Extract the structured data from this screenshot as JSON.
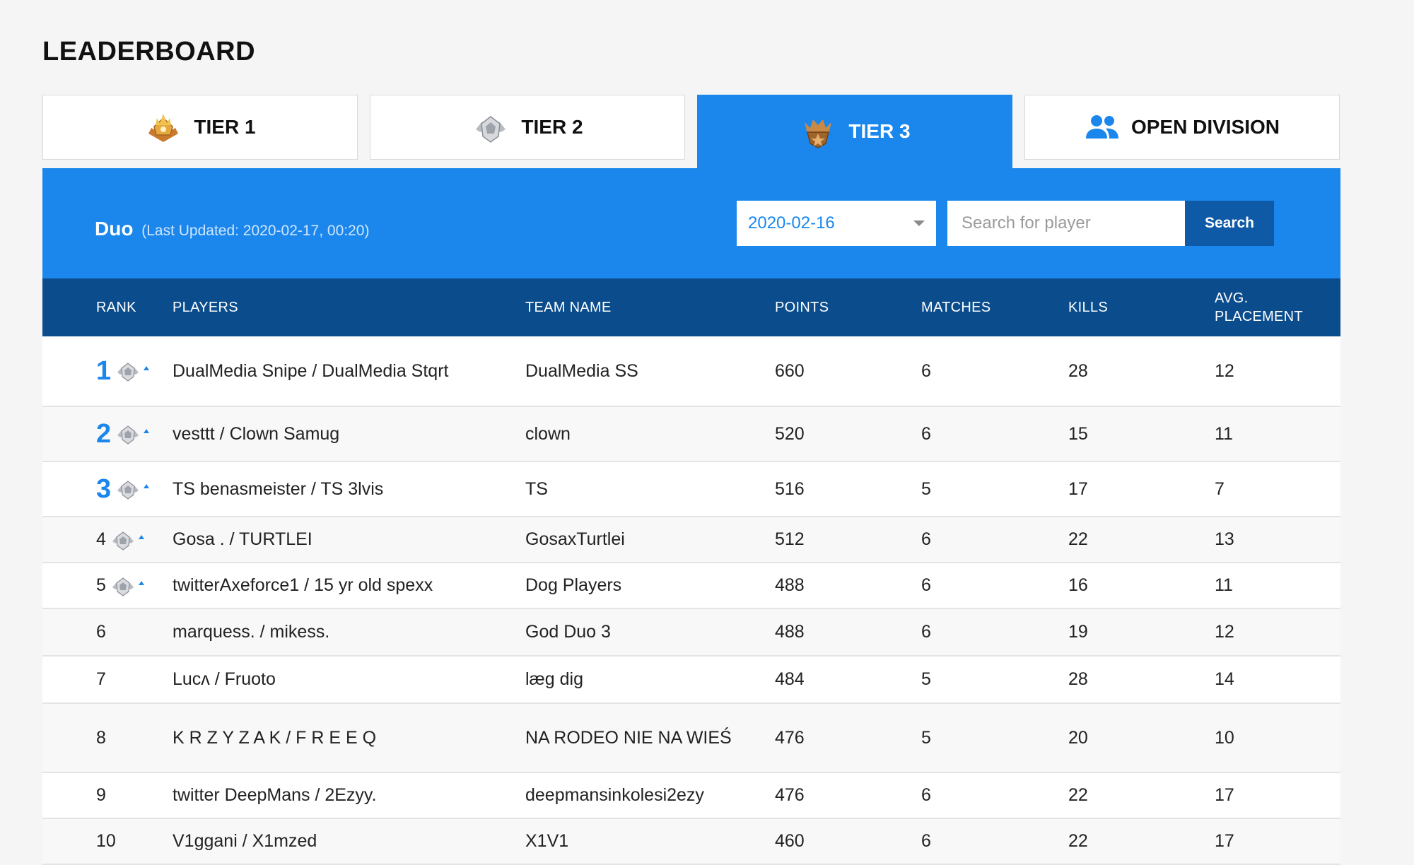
{
  "page": {
    "title": "LEADERBOARD"
  },
  "tabs": [
    {
      "label": "TIER 1",
      "icon": "gold-crown-badge-icon"
    },
    {
      "label": "TIER 2",
      "icon": "silver-badge-icon"
    },
    {
      "label": "TIER 3",
      "icon": "bronze-badge-icon",
      "active": true
    },
    {
      "label": "OPEN DIVISION",
      "icon": "people-icon"
    }
  ],
  "banner": {
    "mode": "Duo",
    "updated": "(Last Updated: 2020-02-17, 00:20)",
    "date_value": "2020-02-16",
    "search_placeholder": "Search for player",
    "search_label": "Search"
  },
  "table": {
    "headers": {
      "rank": "RANK",
      "players": "PLAYERS",
      "team": "TEAM NAME",
      "points": "POINTS",
      "matches": "MATCHES",
      "kills": "KILLS",
      "avg_line1": "AVG.",
      "avg_line2": "PLACEMENT"
    },
    "rows": [
      {
        "rank": "1",
        "players": "DualMedia Snipe / DualMedia Stqrt",
        "team": "DualMedia SS",
        "points": "660",
        "matches": "6",
        "kills": "28",
        "avg": "12"
      },
      {
        "rank": "2",
        "players": "vesttt / Clown Samug",
        "team": "clown",
        "points": "520",
        "matches": "6",
        "kills": "15",
        "avg": "11"
      },
      {
        "rank": "3",
        "players": "TS benasmeister / TS 3lvis",
        "team": "TS",
        "points": "516",
        "matches": "5",
        "kills": "17",
        "avg": "7"
      },
      {
        "rank": "4",
        "players": "Gosa . / TURTLEI",
        "team": "GosaxTurtlei",
        "points": "512",
        "matches": "6",
        "kills": "22",
        "avg": "13"
      },
      {
        "rank": "5",
        "players": "twitterAxeforce1 / 15 yr old spexx",
        "team": "Dog Players",
        "points": "488",
        "matches": "6",
        "kills": "16",
        "avg": "11"
      },
      {
        "rank": "6",
        "players": "marquess. / mikess.",
        "team": "God Duo 3",
        "points": "488",
        "matches": "6",
        "kills": "19",
        "avg": "12"
      },
      {
        "rank": "7",
        "players": "Lucʌ / Fruoto",
        "team": "læg dig",
        "points": "484",
        "matches": "5",
        "kills": "28",
        "avg": "14"
      },
      {
        "rank": "8",
        "players": "K R Z Y Z A K / F R E E Q",
        "team": "NA RODEO NIE NA WIEŚ",
        "points": "476",
        "matches": "5",
        "kills": "20",
        "avg": "10"
      },
      {
        "rank": "9",
        "players": "twitter DeepMans / 2Ezyy.",
        "team": "deepmansinkolesi2ezy",
        "points": "476",
        "matches": "6",
        "kills": "22",
        "avg": "17"
      },
      {
        "rank": "10",
        "players": "V1ggani / X1mzed",
        "team": "X1V1",
        "points": "460",
        "matches": "6",
        "kills": "22",
        "avg": "17"
      }
    ]
  },
  "colors": {
    "accent": "#1b87ec",
    "header_dark": "#0a4c8c",
    "button_dark": "#0f5aa6"
  }
}
